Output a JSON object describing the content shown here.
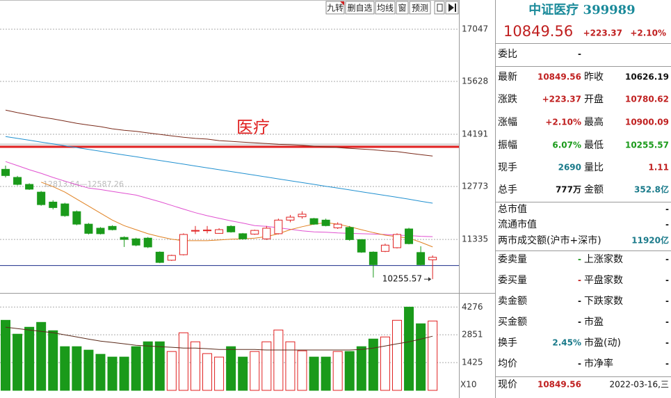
{
  "chart_data": [
    {
      "type": "candlestick",
      "open": [
        13240,
        13020,
        12830,
        12620,
        12350,
        12300,
        12090,
        11750,
        11640,
        11690,
        11390,
        11350,
        11370,
        10990,
        10770,
        10920,
        11560,
        11570,
        11500,
        11690,
        11490,
        11480,
        11350,
        11490,
        11860,
        11950,
        11900,
        11860,
        11650,
        11660,
        11330,
        10990,
        11010,
        11110,
        11620,
        10980,
        10780.62
      ],
      "high": [
        13340,
        13060,
        12860,
        12650,
        12400,
        12330,
        12120,
        11780,
        11670,
        11720,
        11420,
        11380,
        11400,
        11010,
        10920,
        11500,
        11700,
        11700,
        11640,
        11720,
        11510,
        11600,
        11700,
        11900,
        12000,
        12100,
        11920,
        11900,
        11800,
        11700,
        11340,
        11010,
        11220,
        11500,
        11650,
        11150,
        10900.09
      ],
      "low": [
        13020,
        12800,
        12680,
        12250,
        12150,
        11950,
        11720,
        11470,
        11470,
        11580,
        11130,
        11150,
        11100,
        10690,
        10750,
        10900,
        11480,
        11500,
        11490,
        11520,
        11330,
        11460,
        11320,
        11470,
        11800,
        11900,
        11730,
        11690,
        11620,
        11300,
        10970,
        10300,
        10990,
        11090,
        11200,
        10620,
        10255.57
      ],
      "close": [
        13070,
        12830,
        12700,
        12280,
        12200,
        11980,
        11750,
        11500,
        11490,
        11600,
        11335,
        11180,
        11130,
        10710,
        10900,
        11470,
        11580,
        11590,
        11600,
        11540,
        11350,
        11580,
        11640,
        11860,
        11940,
        12020,
        11750,
        11710,
        11750,
        11330,
        10990,
        10650,
        11180,
        11470,
        11220,
        10650,
        10849.56
      ],
      "up_color": "#e02020",
      "down_color": "#1a9a1a",
      "ylim": [
        9900,
        17840
      ],
      "yticks": [
        11335,
        12773,
        14191,
        15628,
        17047
      ],
      "grid": true,
      "series": [
        {
          "color": "#7a2a1a",
          "values": [
            14850,
            14780,
            14720,
            14660,
            14610,
            14550,
            14490,
            14440,
            14400,
            14340,
            14300,
            14270,
            14230,
            14190,
            14150,
            14110,
            14080,
            14060,
            14020,
            14000,
            13980,
            13960,
            13940,
            13920,
            13910,
            13890,
            13870,
            13850,
            13830,
            13810,
            13790,
            13770,
            13740,
            13720,
            13680,
            13640,
            13600
          ]
        },
        {
          "color": "#2090d0",
          "values": [
            14130,
            14080,
            14030,
            13980,
            13930,
            13880,
            13830,
            13780,
            13730,
            13680,
            13630,
            13580,
            13530,
            13480,
            13430,
            13380,
            13330,
            13280,
            13230,
            13180,
            13130,
            13080,
            13030,
            12980,
            12930,
            12880,
            12830,
            12780,
            12730,
            12680,
            12630,
            12580,
            12530,
            12480,
            12430,
            12370,
            12320
          ]
        },
        {
          "color": "#e050d0",
          "values": [
            13450,
            13340,
            13230,
            13130,
            13020,
            12920,
            12820,
            12730,
            12690,
            12640,
            12590,
            12540,
            12450,
            12360,
            12260,
            12160,
            12060,
            11980,
            11910,
            11840,
            11780,
            11710,
            11690,
            11650,
            11610,
            11570,
            11540,
            11530,
            11510,
            11500,
            11490,
            11480,
            11470,
            11450,
            11440,
            11420,
            11410
          ]
        },
        {
          "color": "#e08020",
          "values": [
            null,
            null,
            null,
            12890,
            12770,
            12620,
            12430,
            12240,
            12050,
            11860,
            11710,
            11600,
            11490,
            11410,
            11340,
            11300,
            11300,
            11300,
            11320,
            11340,
            11350,
            11370,
            11410,
            11490,
            11600,
            11680,
            11750,
            11790,
            11750,
            11680,
            11600,
            11520,
            11450,
            11410,
            11370,
            11260,
            11130
          ]
        }
      ],
      "reference_lines": [
        {
          "value": 13850,
          "color": "#e02020",
          "label": "医疗"
        },
        {
          "value": 10626.19,
          "color": "#1a2a8a"
        }
      ],
      "annotation": "12813.64—12587.26"
    },
    {
      "type": "bar",
      "values": [
        3596,
        2884,
        3240,
        3489,
        3062,
        2243,
        2243,
        2065,
        1851,
        1709,
        1709,
        2243,
        2492,
        2492,
        1994,
        2955,
        2492,
        1887,
        1709,
        2243,
        1709,
        1994,
        2492,
        3098,
        2492,
        2030,
        1709,
        1709,
        1994,
        1994,
        2243,
        2634,
        2741,
        3596,
        4272,
        3418,
        3560
      ],
      "ylim": [
        0,
        5000
      ],
      "yticks": [
        1425,
        2851,
        4276
      ],
      "grid": true,
      "unit": "X10",
      "series": [
        {
          "color": "#5a2a1a",
          "values": [
            3240,
            3170,
            3100,
            3030,
            2960,
            2850,
            2740,
            2630,
            2530,
            2460,
            2390,
            2310,
            2280,
            2240,
            2210,
            2170,
            2170,
            2140,
            2100,
            2100,
            2100,
            2100,
            2070,
            2070,
            2070,
            2070,
            2070,
            2070,
            2070,
            2070,
            2100,
            2170,
            2280,
            2390,
            2490,
            2630,
            2780
          ]
        }
      ]
    }
  ],
  "toolbar": [
    "九转",
    "删自选",
    "均线",
    "窗",
    "预测"
  ],
  "quote": {
    "title": "中证医疗 399989",
    "price": "10849.56",
    "change": "+223.37",
    "change_pct": "+2.10%",
    "rows": [
      {
        "label": "委比",
        "value": "-"
      },
      {
        "label": "最新",
        "value": "10849.56",
        "label2": "昨收",
        "value2": "10626.19"
      },
      {
        "label": "涨跌",
        "value": "+223.37",
        "label2": "开盘",
        "value2": "10780.62"
      },
      {
        "label": "涨幅",
        "value": "+2.10%",
        "label2": "最高",
        "value2": "10900.09"
      },
      {
        "label": "振幅",
        "value": "6.07%",
        "label2": "最低",
        "value2": "10255.57"
      },
      {
        "label": "现手",
        "value": "2690",
        "label2": "量比",
        "value2": "1.11"
      },
      {
        "label": "总手",
        "value": "777万",
        "label2": "金额",
        "value2": "352.8亿"
      },
      {
        "label": "总市值",
        "value": "-"
      },
      {
        "label": "流通市值",
        "value": "-"
      },
      {
        "label": "两市成交额(沪市+深市)",
        "value": "11920亿"
      },
      {
        "label": "委卖量",
        "value": "-",
        "label2": "上涨家数",
        "value2": "-"
      },
      {
        "label": "委买量",
        "value": "-",
        "label2": "平盘家数",
        "value2": "-"
      },
      {
        "label": "卖金额",
        "value": "-",
        "label2": "下跌家数",
        "value2": "-"
      },
      {
        "label": "买金额",
        "value": "-",
        "label2": "市盈",
        "value2": "-"
      },
      {
        "label": "换手",
        "value": "2.45%",
        "label2": "市盈(动)",
        "value2": "-"
      },
      {
        "label": "均价",
        "value": "-",
        "label2": "市净率",
        "value2": "-"
      },
      {
        "label": "现价",
        "value": "10849.56",
        "value2": "2022-03-16,三"
      }
    ]
  }
}
